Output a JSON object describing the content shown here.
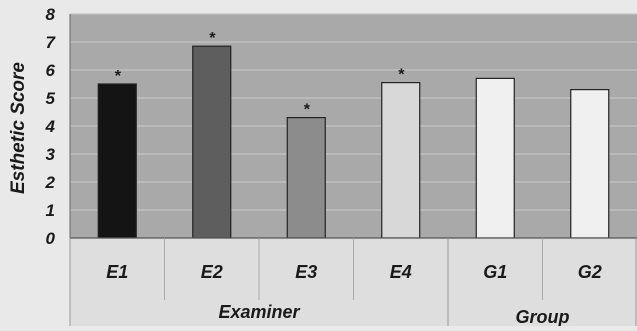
{
  "chart_data": {
    "type": "bar",
    "ylabel": "Esthetic Score",
    "ylim": [
      0,
      8
    ],
    "yticks": [
      0,
      1,
      2,
      3,
      4,
      5,
      6,
      7,
      8
    ],
    "grid": true,
    "categories": [
      "E1",
      "E2",
      "E3",
      "E4",
      "G1",
      "G2"
    ],
    "values": [
      5.5,
      6.85,
      4.3,
      5.55,
      5.7,
      5.3
    ],
    "significance_markers": [
      "*",
      "*",
      "*",
      "*",
      "",
      ""
    ],
    "bar_colors": [
      "#141414",
      "#5e5e5e",
      "#8c8c8c",
      "#d8d8d8",
      "#f0f0f0",
      "#f0f0f0"
    ],
    "groups": [
      {
        "label": "Examiner",
        "categories": [
          "E1",
          "E2",
          "E3",
          "E4"
        ]
      },
      {
        "label": "Group",
        "categories": [
          "G1",
          "G2"
        ]
      }
    ]
  },
  "colors": {
    "plot_background": "#a9a9a9",
    "axis_band": "#dedede",
    "gridline": "#c4c4c4"
  }
}
